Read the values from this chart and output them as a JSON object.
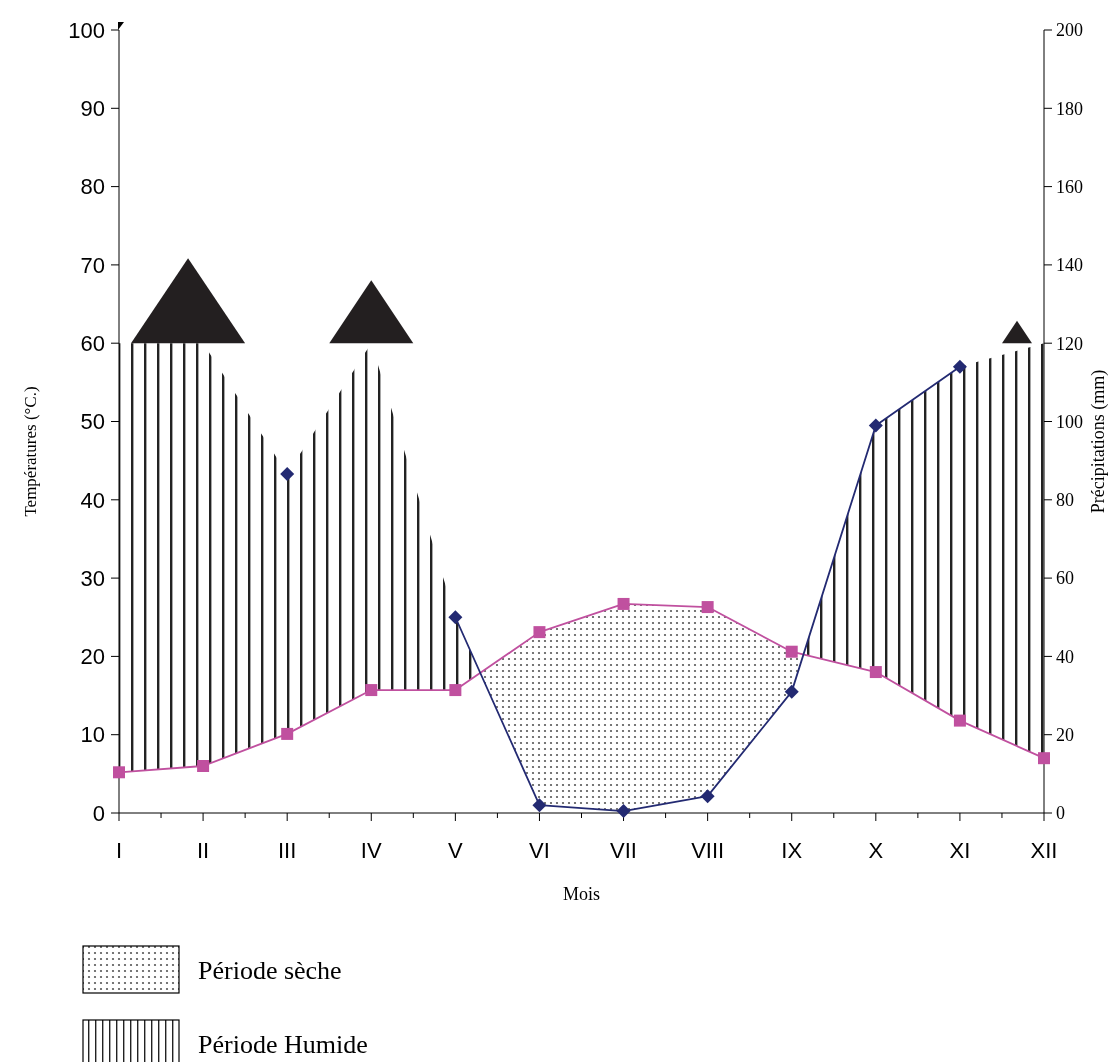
{
  "chart_data": {
    "type": "line",
    "xlabel": "Mois",
    "ylabel": "Températures (°C.)",
    "y2label": "Précipitations (mm)",
    "categories": [
      "I",
      "II",
      "III",
      "IV",
      "V",
      "VI",
      "VII",
      "VIII",
      "IX",
      "X",
      "XI",
      "XII"
    ],
    "series": [
      {
        "color": "#c0509f",
        "marker": "square",
        "values": [
          5.2,
          6.0,
          10.1,
          15.7,
          15.7,
          23.1,
          26.7,
          26.3,
          20.6,
          18.0,
          11.8,
          7.0
        ]
      },
      {
        "color": "#232a72",
        "marker": "diamond",
        "axis": "y2",
        "values": [
          null,
          null,
          86.6,
          null,
          50,
          2,
          0.5,
          4.3,
          31,
          99,
          114,
          null
        ]
      }
    ],
    "ylim": [
      0,
      100
    ],
    "yticks": [
      0,
      10,
      20,
      30,
      40,
      50,
      60,
      70,
      80,
      90,
      100
    ],
    "y2lim": [
      0,
      200
    ],
    "y2ticks": [
      0,
      20,
      40,
      60,
      80,
      100,
      120,
      140,
      160,
      180,
      200
    ],
    "annotations": [
      "Période sèche",
      "Période Humide"
    ],
    "grid": false
  }
}
